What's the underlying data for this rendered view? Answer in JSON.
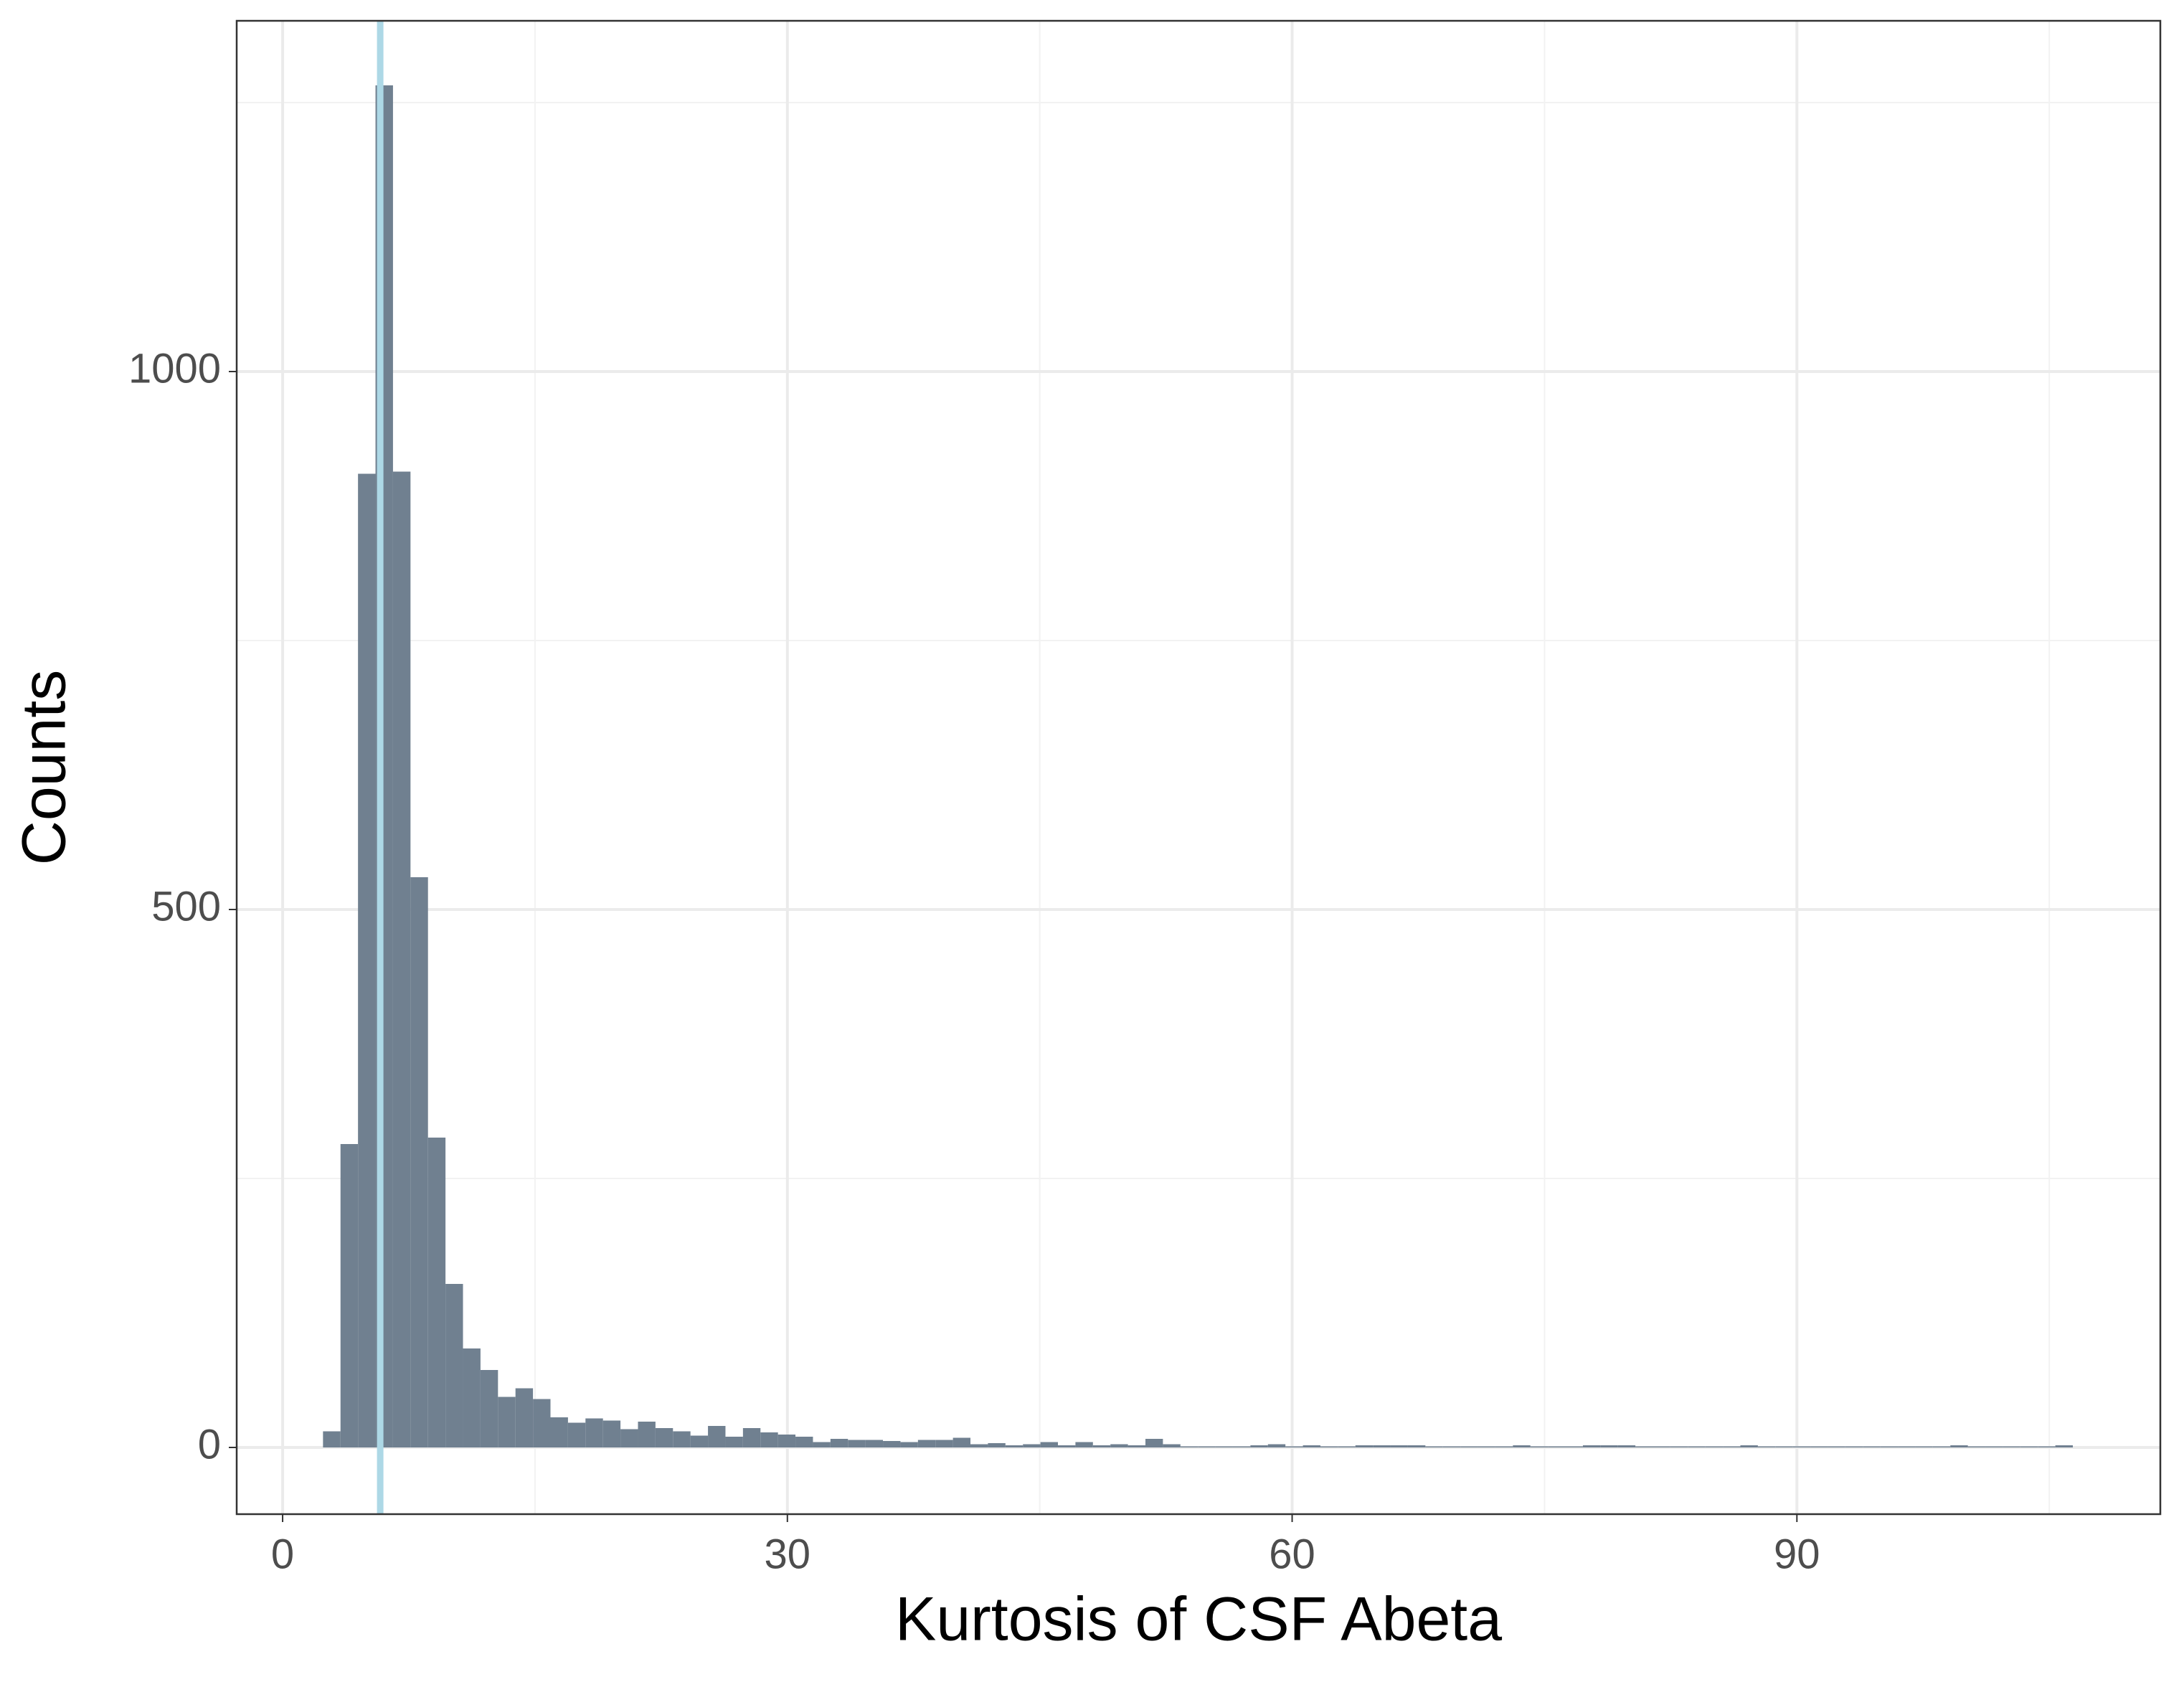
{
  "chart_data": {
    "type": "histogram",
    "xlabel": "Kurtosis of CSF Abeta",
    "ylabel": "Counts",
    "bins": [
      2.4,
      3.44,
      4.48,
      5.52,
      6.56,
      7.6,
      8.64,
      9.68,
      10.72,
      11.76,
      12.8,
      13.84,
      14.88,
      15.92,
      16.96,
      18,
      19.04,
      20.08,
      21.12,
      22.16,
      23.2,
      24.24,
      25.28,
      26.32,
      27.36,
      28.4,
      29.44,
      30.48,
      31.52,
      32.56,
      33.6,
      34.64,
      35.68,
      36.72,
      37.76,
      38.8,
      39.84,
      40.88,
      41.92,
      42.96,
      44,
      45.04,
      46.08,
      47.12,
      48.16,
      49.2,
      50.24,
      51.28,
      52.32,
      53.36,
      54.4,
      55.44,
      56.48,
      57.52,
      58.56,
      59.6,
      60.64,
      61.68,
      62.72,
      63.76,
      64.8,
      65.84,
      66.88,
      67.92,
      68.96,
      70,
      71.04,
      72.08,
      73.12,
      74.16,
      75.2,
      76.24,
      77.28,
      78.32,
      79.36,
      80.4,
      81.44,
      82.48,
      83.52,
      84.56,
      85.6,
      86.64,
      87.68,
      88.72,
      89.76,
      90.8,
      91.84,
      92.88,
      93.92,
      94.96,
      96,
      97.04,
      98.08,
      99.12,
      100.16,
      101.2,
      102.24,
      103.28,
      104.32,
      105.36,
      106.4
    ],
    "values": [
      15,
      282,
      905,
      1266,
      907,
      530,
      288,
      152,
      92,
      72,
      47,
      55,
      45,
      28,
      23,
      27,
      25,
      17,
      24,
      18,
      15,
      11,
      20,
      10,
      18,
      14,
      12,
      10,
      5,
      8,
      7,
      7,
      6,
      5,
      7,
      7,
      9,
      3,
      4,
      2,
      3,
      5,
      2,
      5,
      2,
      3,
      2,
      8,
      3,
      1,
      1,
      1,
      1,
      2,
      3,
      1,
      2,
      1,
      1,
      2,
      2,
      2,
      2,
      1,
      1,
      1,
      1,
      1,
      2,
      1,
      1,
      1,
      2,
      2,
      2,
      1,
      1,
      1,
      1,
      1,
      1,
      2,
      1,
      1,
      1,
      1,
      1,
      1,
      1,
      1,
      1,
      1,
      1,
      2,
      1,
      1,
      1,
      1,
      1,
      2
    ],
    "color": "#708090",
    "vline": {
      "x": 5.8,
      "color": "#add8e6"
    },
    "xlim": [
      -2.73,
      111.6
    ],
    "ylim": [
      -62,
      1326
    ],
    "xticks": [
      0,
      30,
      60,
      90
    ],
    "yticks": [
      0,
      500,
      1000
    ],
    "xminor": [
      15,
      45,
      75,
      105
    ],
    "yminor": [
      250,
      750,
      1250
    ],
    "grid": true
  }
}
